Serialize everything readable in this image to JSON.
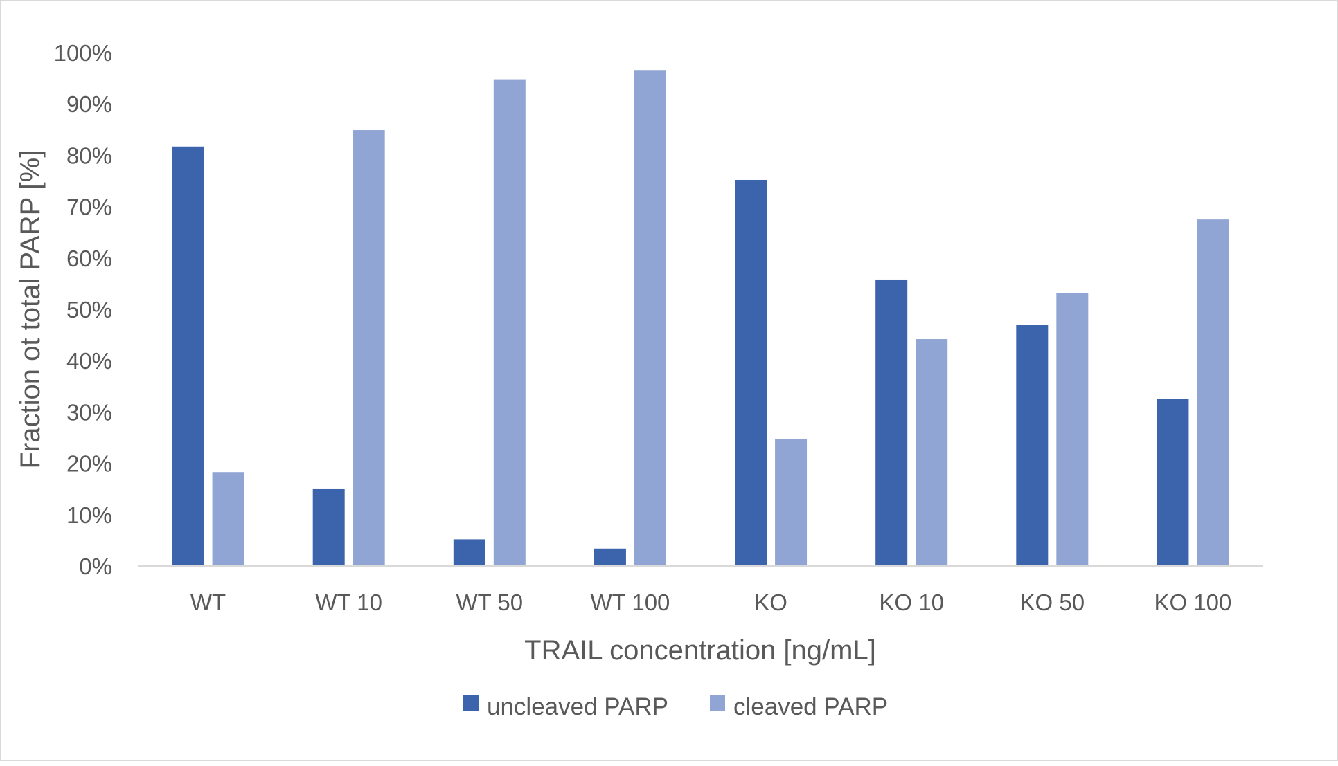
{
  "chart_data": {
    "type": "bar",
    "title": "",
    "xlabel": "TRAIL concentration [ng/mL]",
    "ylabel": "Fraction ot total PARP [%]",
    "categories": [
      "WT",
      "WT 10",
      "WT 50",
      "WT 100",
      "KO",
      "KO 10",
      "KO 50",
      "KO 100"
    ],
    "series": [
      {
        "name": "uncleaved PARP",
        "color": "#3b64ad",
        "values": [
          81.7,
          15.1,
          5.2,
          3.4,
          75.2,
          55.8,
          46.9,
          32.5
        ]
      },
      {
        "name": "cleaved PARP",
        "color": "#91a5d4",
        "values": [
          18.3,
          84.9,
          94.8,
          96.6,
          24.8,
          44.2,
          53.1,
          67.5
        ]
      }
    ],
    "ylim": [
      0,
      100
    ],
    "yticks": [
      0,
      10,
      20,
      30,
      40,
      50,
      60,
      70,
      80,
      90,
      100
    ],
    "ytick_labels": [
      "0%",
      "10%",
      "20%",
      "30%",
      "40%",
      "50%",
      "60%",
      "70%",
      "80%",
      "90%",
      "100%"
    ],
    "grid": false,
    "legend_position": "bottom"
  }
}
